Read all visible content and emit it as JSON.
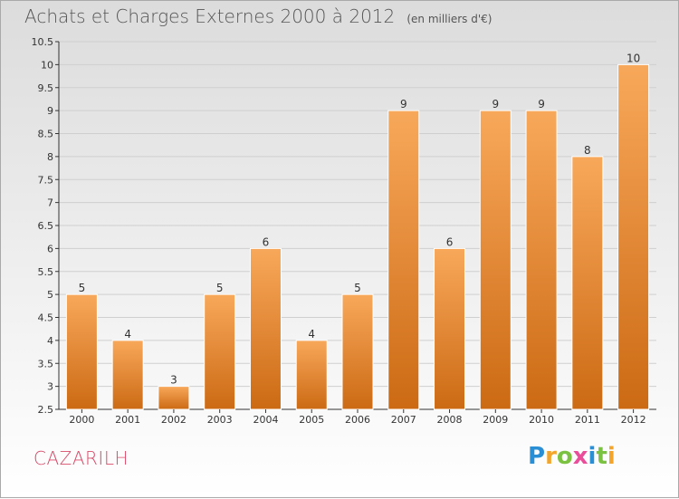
{
  "chart_title": "Achats et Charges Externes 2000 à 2012",
  "chart_subtitle": "(en milliers d'€)",
  "commune": "CAZARILH",
  "logo": {
    "letters": [
      "P",
      "r",
      "o",
      "x",
      "i",
      "t",
      "i"
    ],
    "colors": [
      "#2b8fd6",
      "#f2a52a",
      "#7cc242",
      "#e84e9a",
      "#2b8fd6",
      "#7cc242",
      "#f2a52a"
    ]
  },
  "colors": {
    "bar_top": "#f8a85a",
    "bar_bottom": "#cc6a14",
    "axis": "#333333",
    "grid": "#cfcfcf"
  },
  "chart_data": {
    "type": "bar",
    "title": "Achats et Charges Externes 2000 à 2012",
    "subtitle": "(en milliers d'€)",
    "xlabel": "",
    "ylabel": "",
    "categories": [
      "2000",
      "2001",
      "2002",
      "2003",
      "2004",
      "2005",
      "2006",
      "2007",
      "2008",
      "2009",
      "2010",
      "2011",
      "2012"
    ],
    "values": [
      5,
      4,
      3,
      5,
      6,
      4,
      5,
      9,
      6,
      9,
      9,
      8,
      10
    ],
    "ylim": [
      2.5,
      10.5
    ],
    "yticks": [
      "2.5",
      "3",
      "3.5",
      "4",
      "4.5",
      "5",
      "5.5",
      "6",
      "6.5",
      "7",
      "7.5",
      "8",
      "8.5",
      "9",
      "9.5",
      "10",
      "10.5"
    ],
    "grid": true
  }
}
